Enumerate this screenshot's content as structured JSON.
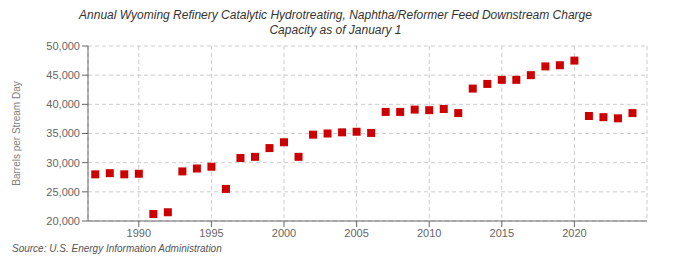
{
  "chart_data": {
    "type": "scatter",
    "title": "Annual Wyoming Refinery Catalytic Hydrotreating, Naphtha/Reformer Feed Downstream Charge\nCapacity as of January 1",
    "ylabel": "Barrels per Stream Day",
    "annotations": [
      "Source: U.S. Energy Information Administration"
    ],
    "x": [
      1987,
      1988,
      1989,
      1990,
      1991,
      1992,
      1993,
      1994,
      1995,
      1996,
      1997,
      1998,
      1999,
      2000,
      2001,
      2002,
      2003,
      2004,
      2005,
      2006,
      2007,
      2008,
      2009,
      2010,
      2011,
      2012,
      2013,
      2014,
      2015,
      2016,
      2017,
      2018,
      2019,
      2020,
      2021,
      2022,
      2023,
      2024
    ],
    "values": [
      28000,
      28200,
      28000,
      28100,
      21200,
      21500,
      28500,
      29000,
      29300,
      25500,
      30800,
      31000,
      32500,
      33500,
      31000,
      34800,
      35000,
      35200,
      35300,
      35100,
      38700,
      38700,
      39100,
      39000,
      39200,
      38500,
      42700,
      43500,
      44200,
      44200,
      45000,
      46500,
      46700,
      47500,
      38000,
      37800,
      37600,
      38500
    ],
    "color": "#cc0000",
    "marker": "square",
    "grid": true,
    "xlim": [
      1986.5,
      2025
    ],
    "xticks": [
      1990,
      1995,
      2000,
      2005,
      2010,
      2015,
      2020
    ],
    "ylim": [
      20000,
      50000
    ],
    "yticks": [
      {
        "value": 20000,
        "label": "20,000"
      },
      {
        "value": 25000,
        "label": "25,000"
      },
      {
        "value": 30000,
        "label": "30,000"
      },
      {
        "value": 35000,
        "label": "35,000"
      },
      {
        "value": 40000,
        "label": "40,000"
      },
      {
        "value": 45000,
        "label": "45,000"
      },
      {
        "value": 50000,
        "label": "50,000"
      }
    ]
  }
}
